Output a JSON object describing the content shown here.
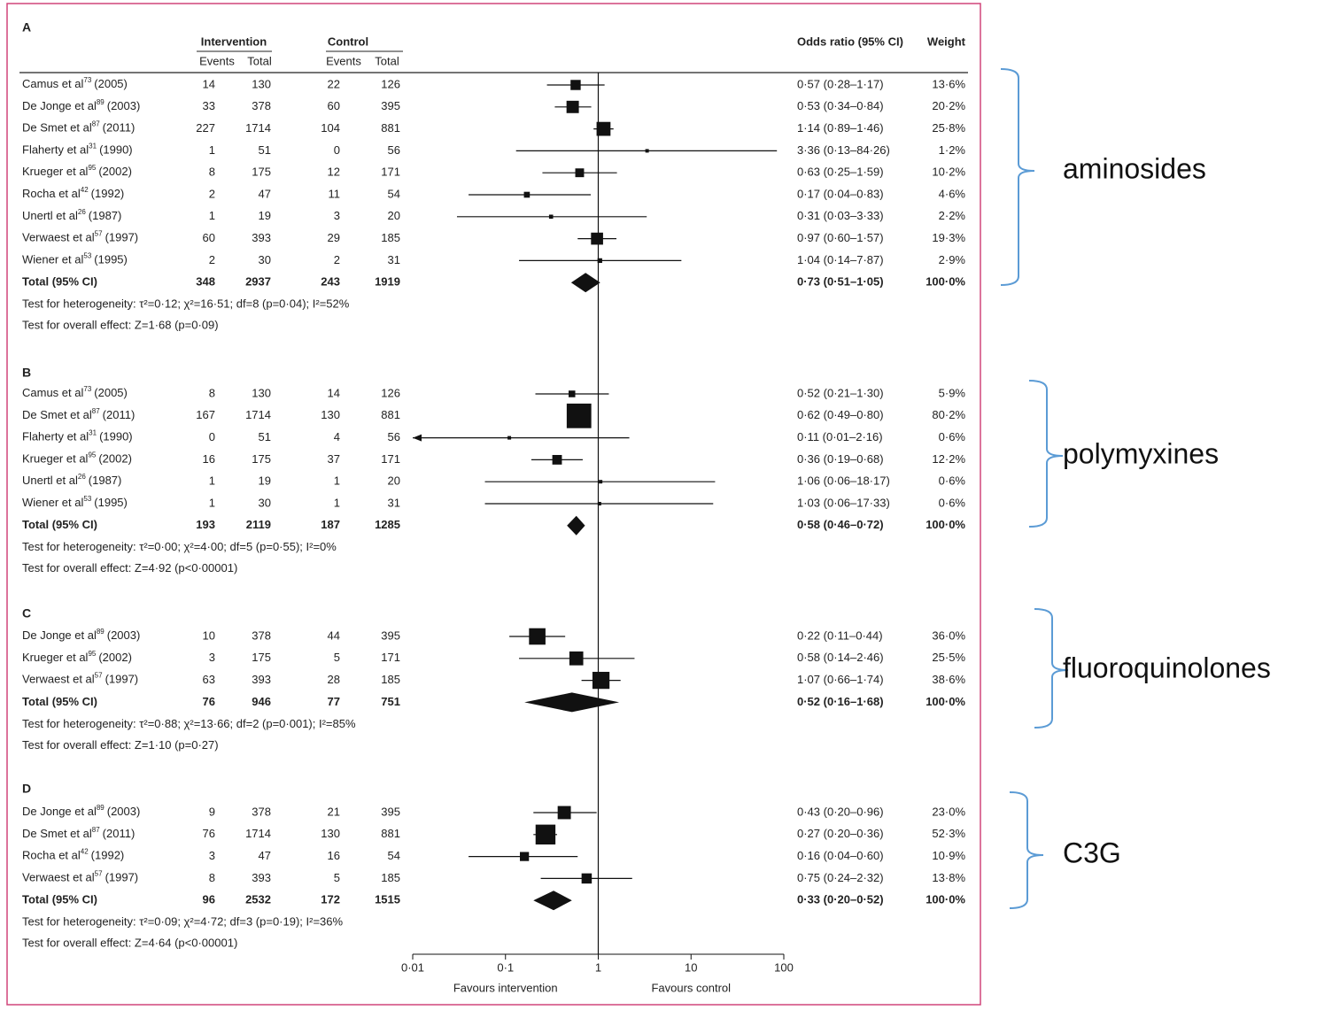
{
  "chart_data": {
    "type": "forest",
    "log_scale": true,
    "xlim": [
      0.01,
      100
    ],
    "xticks": [
      {
        "value": 0.01,
        "label": "0·01"
      },
      {
        "value": 0.1,
        "label": "0·1"
      },
      1,
      10,
      100
    ],
    "ref_line": 1,
    "x_labels": [
      "Favours intervention",
      "Favours control"
    ],
    "headers": {
      "intervention": "Intervention",
      "control": "Control",
      "events": "Events",
      "total": "Total",
      "or_ci": "Odds ratio (95% CI)",
      "weight": "Weight"
    },
    "bracket_color": "#5b9bd5",
    "border_color": "#d0457a",
    "panels": [
      {
        "label": "A",
        "bracket_label": "aminosides",
        "studies": [
          {
            "name": "Camus et al",
            "ref": "73",
            "year": "(2005)",
            "events_i": 14,
            "total_i": 130,
            "events_c": 22,
            "total_c": 126,
            "or": 0.57,
            "ci": [
              0.28,
              1.17
            ],
            "or_label": "0·57 (0·28–1·17)",
            "weight": 13.6,
            "weight_label": "13·6%"
          },
          {
            "name": "De Jonge et al",
            "ref": "89",
            "year": "(2003)",
            "events_i": 33,
            "total_i": 378,
            "events_c": 60,
            "total_c": 395,
            "or": 0.53,
            "ci": [
              0.34,
              0.84
            ],
            "or_label": "0·53 (0·34–0·84)",
            "weight": 20.2,
            "weight_label": "20·2%"
          },
          {
            "name": "De Smet et al",
            "ref": "87",
            "year": "(2011)",
            "events_i": 227,
            "total_i": 1714,
            "events_c": 104,
            "total_c": 881,
            "or": 1.14,
            "ci": [
              0.89,
              1.46
            ],
            "or_label": "1·14 (0·89–1·46)",
            "weight": 25.8,
            "weight_label": "25·8%"
          },
          {
            "name": "Flaherty et al",
            "ref": "31",
            "year": "(1990)",
            "events_i": 1,
            "total_i": 51,
            "events_c": 0,
            "total_c": 56,
            "or": 3.36,
            "ci": [
              0.13,
              84.26
            ],
            "or_label": "3·36 (0·13–84·26)",
            "weight": 1.2,
            "weight_label": "1·2%"
          },
          {
            "name": "Krueger et al",
            "ref": "95",
            "year": "(2002)",
            "events_i": 8,
            "total_i": 175,
            "events_c": 12,
            "total_c": 171,
            "or": 0.63,
            "ci": [
              0.25,
              1.59
            ],
            "or_label": "0·63 (0·25–1·59)",
            "weight": 10.2,
            "weight_label": "10·2%"
          },
          {
            "name": "Rocha et al",
            "ref": "42",
            "year": "(1992)",
            "events_i": 2,
            "total_i": 47,
            "events_c": 11,
            "total_c": 54,
            "or": 0.17,
            "ci": [
              0.04,
              0.83
            ],
            "or_label": "0·17 (0·04–0·83)",
            "weight": 4.6,
            "weight_label": "4·6%"
          },
          {
            "name": "Unertl et al",
            "ref": "26",
            "year": "(1987)",
            "events_i": 1,
            "total_i": 19,
            "events_c": 3,
            "total_c": 20,
            "or": 0.31,
            "ci": [
              0.03,
              3.33
            ],
            "or_label": "0·31 (0·03–3·33)",
            "weight": 2.2,
            "weight_label": "2·2%"
          },
          {
            "name": "Verwaest et al",
            "ref": "57",
            "year": "(1997)",
            "events_i": 60,
            "total_i": 393,
            "events_c": 29,
            "total_c": 185,
            "or": 0.97,
            "ci": [
              0.6,
              1.57
            ],
            "or_label": "0·97 (0·60–1·57)",
            "weight": 19.3,
            "weight_label": "19·3%"
          },
          {
            "name": "Wiener et al",
            "ref": "53",
            "year": "(1995)",
            "events_i": 2,
            "total_i": 30,
            "events_c": 2,
            "total_c": 31,
            "or": 1.04,
            "ci": [
              0.14,
              7.87
            ],
            "or_label": "1·04 (0·14–7·87)",
            "weight": 2.9,
            "weight_label": "2·9%"
          }
        ],
        "total": {
          "name": "Total (95% CI)",
          "events_i": 348,
          "total_i": 2937,
          "events_c": 243,
          "total_c": 1919,
          "or": 0.73,
          "ci": [
            0.51,
            1.05
          ],
          "or_label": "0·73 (0·51–1·05)",
          "weight": 100.0,
          "weight_label": "100·0%"
        },
        "heterogeneity": "Test for heterogeneity: τ²=0·12; χ²=16·51; df=8 (p=0·04); I²=52%",
        "overall": "Test for overall effect: Z=1·68 (p=0·09)"
      },
      {
        "label": "B",
        "bracket_label": "polymyxines",
        "studies": [
          {
            "name": "Camus et al",
            "ref": "73",
            "year": "(2005)",
            "events_i": 8,
            "total_i": 130,
            "events_c": 14,
            "total_c": 126,
            "or": 0.52,
            "ci": [
              0.21,
              1.3
            ],
            "or_label": "0·52 (0·21–1·30)",
            "weight": 5.9,
            "weight_label": "5·9%"
          },
          {
            "name": "De Smet et al",
            "ref": "87",
            "year": "(2011)",
            "events_i": 167,
            "total_i": 1714,
            "events_c": 130,
            "total_c": 881,
            "or": 0.62,
            "ci": [
              0.49,
              0.8
            ],
            "or_label": "0·62 (0·49–0·80)",
            "weight": 80.2,
            "weight_label": "80·2%"
          },
          {
            "name": "Flaherty et al",
            "ref": "31",
            "year": "(1990)",
            "events_i": 0,
            "total_i": 51,
            "events_c": 4,
            "total_c": 56,
            "or": 0.11,
            "ci": [
              0.01,
              2.16
            ],
            "or_label": "0·11 (0·01–2·16)",
            "weight": 0.6,
            "weight_label": "0·6%"
          },
          {
            "name": "Krueger et al",
            "ref": "95",
            "year": "(2002)",
            "events_i": 16,
            "total_i": 175,
            "events_c": 37,
            "total_c": 171,
            "or": 0.36,
            "ci": [
              0.19,
              0.68
            ],
            "or_label": "0·36 (0·19–0·68)",
            "weight": 12.2,
            "weight_label": "12·2%"
          },
          {
            "name": "Unertl et al",
            "ref": "26",
            "year": "(1987)",
            "events_i": 1,
            "total_i": 19,
            "events_c": 1,
            "total_c": 20,
            "or": 1.06,
            "ci": [
              0.06,
              18.17
            ],
            "or_label": "1·06 (0·06–18·17)",
            "weight": 0.6,
            "weight_label": "0·6%"
          },
          {
            "name": "Wiener et al",
            "ref": "53",
            "year": "(1995)",
            "events_i": 1,
            "total_i": 30,
            "events_c": 1,
            "total_c": 31,
            "or": 1.03,
            "ci": [
              0.06,
              17.33
            ],
            "or_label": "1·03 (0·06–17·33)",
            "weight": 0.6,
            "weight_label": "0·6%"
          }
        ],
        "total": {
          "name": "Total (95% CI)",
          "events_i": 193,
          "total_i": 2119,
          "events_c": 187,
          "total_c": 1285,
          "or": 0.58,
          "ci": [
            0.46,
            0.72
          ],
          "or_label": "0·58 (0·46–0·72)",
          "weight": 100.0,
          "weight_label": "100·0%"
        },
        "heterogeneity": "Test for heterogeneity: τ²=0·00; χ²=4·00; df=5 (p=0·55); I²=0%",
        "overall": "Test for overall effect: Z=4·92 (p<0·00001)"
      },
      {
        "label": "C",
        "bracket_label": "fluoroquinolones",
        "studies": [
          {
            "name": "De Jonge et al",
            "ref": "89",
            "year": "(2003)",
            "events_i": 10,
            "total_i": 378,
            "events_c": 44,
            "total_c": 395,
            "or": 0.22,
            "ci": [
              0.11,
              0.44
            ],
            "or_label": "0·22 (0·11–0·44)",
            "weight": 36.0,
            "weight_label": "36·0%"
          },
          {
            "name": "Krueger et al",
            "ref": "95",
            "year": "(2002)",
            "events_i": 3,
            "total_i": 175,
            "events_c": 5,
            "total_c": 171,
            "or": 0.58,
            "ci": [
              0.14,
              2.46
            ],
            "or_label": "0·58 (0·14–2·46)",
            "weight": 25.5,
            "weight_label": "25·5%"
          },
          {
            "name": "Verwaest et al",
            "ref": "57",
            "year": "(1997)",
            "events_i": 63,
            "total_i": 393,
            "events_c": 28,
            "total_c": 185,
            "or": 1.07,
            "ci": [
              0.66,
              1.74
            ],
            "or_label": "1·07 (0·66–1·74)",
            "weight": 38.6,
            "weight_label": "38·6%"
          }
        ],
        "total": {
          "name": "Total (95% CI)",
          "events_i": 76,
          "total_i": 946,
          "events_c": 77,
          "total_c": 751,
          "or": 0.52,
          "ci": [
            0.16,
            1.68
          ],
          "or_label": "0·52 (0·16–1·68)",
          "weight": 100.0,
          "weight_label": "100·0%"
        },
        "heterogeneity": "Test for heterogeneity: τ²=0·88; χ²=13·66; df=2 (p=0·001); I²=85%",
        "overall": "Test for overall effect: Z=1·10 (p=0·27)"
      },
      {
        "label": "D",
        "bracket_label": "C3G",
        "studies": [
          {
            "name": "De Jonge et al",
            "ref": "89",
            "year": "(2003)",
            "events_i": 9,
            "total_i": 378,
            "events_c": 21,
            "total_c": 395,
            "or": 0.43,
            "ci": [
              0.2,
              0.96
            ],
            "or_label": "0·43 (0·20–0·96)",
            "weight": 23.0,
            "weight_label": "23·0%"
          },
          {
            "name": "De Smet et al",
            "ref": "87",
            "year": "(2011)",
            "events_i": 76,
            "total_i": 1714,
            "events_c": 130,
            "total_c": 881,
            "or": 0.27,
            "ci": [
              0.2,
              0.36
            ],
            "or_label": "0·27 (0·20–0·36)",
            "weight": 52.3,
            "weight_label": "52·3%"
          },
          {
            "name": "Rocha et al",
            "ref": "42",
            "year": "(1992)",
            "events_i": 3,
            "total_i": 47,
            "events_c": 16,
            "total_c": 54,
            "or": 0.16,
            "ci": [
              0.04,
              0.6
            ],
            "or_label": "0·16 (0·04–0·60)",
            "weight": 10.9,
            "weight_label": "10·9%"
          },
          {
            "name": "Verwaest et al",
            "ref": "57",
            "year": "(1997)",
            "events_i": 8,
            "total_i": 393,
            "events_c": 5,
            "total_c": 185,
            "or": 0.75,
            "ci": [
              0.24,
              2.32
            ],
            "or_label": "0·75 (0·24–2·32)",
            "weight": 13.8,
            "weight_label": "13·8%"
          }
        ],
        "total": {
          "name": "Total (95% CI)",
          "events_i": 96,
          "total_i": 2532,
          "events_c": 172,
          "total_c": 1515,
          "or": 0.33,
          "ci": [
            0.2,
            0.52
          ],
          "or_label": "0·33 (0·20–0·52)",
          "weight": 100.0,
          "weight_label": "100·0%"
        },
        "heterogeneity": "Test for heterogeneity: τ²=0·09; χ²=4·72; df=3 (p=0·19); I²=36%",
        "overall": "Test for overall effect: Z=4·64 (p<0·00001)"
      }
    ]
  }
}
